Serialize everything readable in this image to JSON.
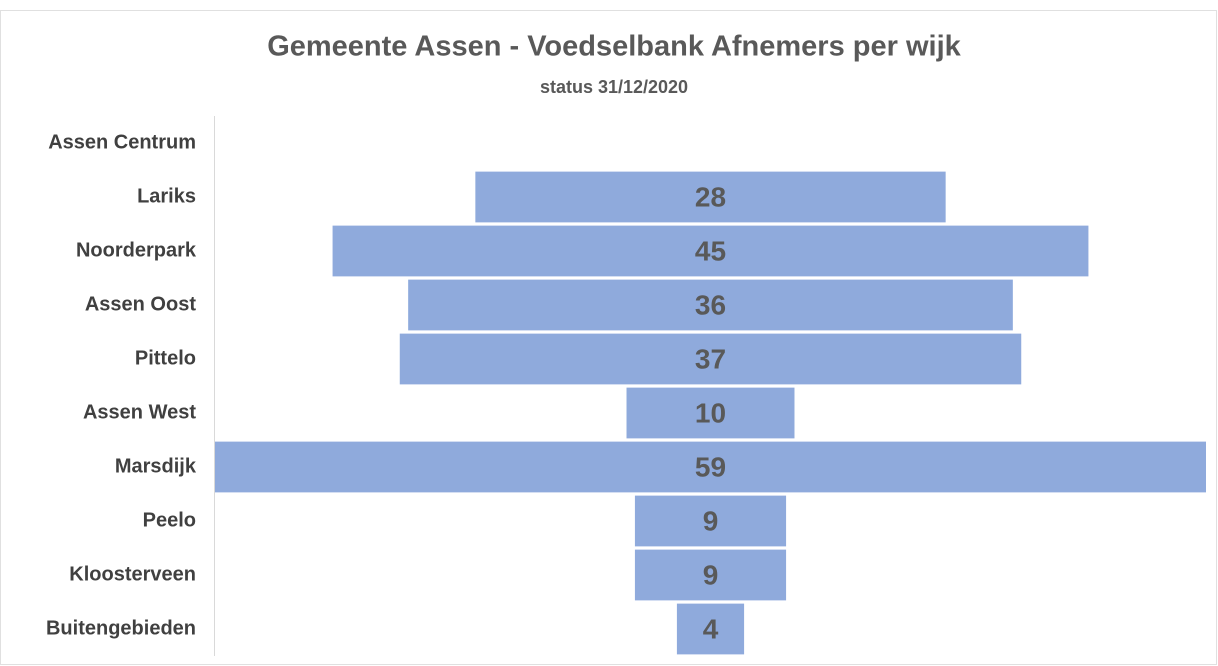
{
  "chart_data": {
    "type": "funnel",
    "title": "Gemeente Assen -  Voedselbank Afnemers per wijk",
    "subtitle": "status 31/12/2020",
    "categories": [
      "Assen Centrum",
      "Lariks",
      "Noorderpark",
      "Assen Oost",
      "Pittelo",
      "Assen West",
      "Marsdijk",
      "Peelo",
      "Kloosterveen",
      "Buitengebieden"
    ],
    "values": [
      null,
      28,
      45,
      36,
      37,
      10,
      59,
      9,
      9,
      4
    ],
    "color": "#8faadc"
  }
}
